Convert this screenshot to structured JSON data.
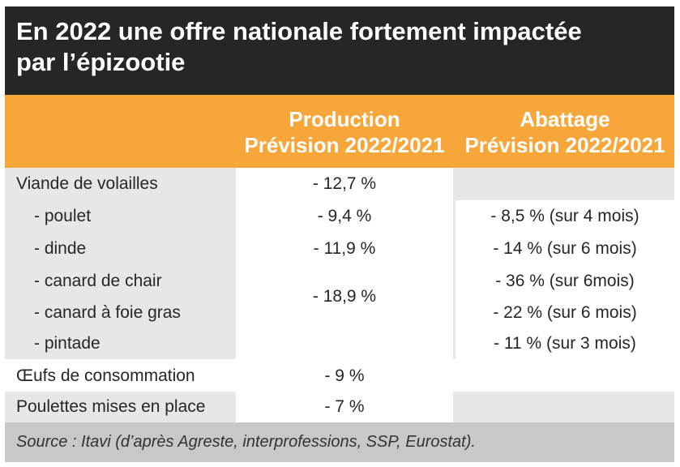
{
  "title": {
    "line1": "En 2022 une offre nationale fortement impactée",
    "line2": "par l’épizootie"
  },
  "header": {
    "production": {
      "line1": "Production",
      "line2": "Prévision 2022/2021"
    },
    "abattage": {
      "line1": "Abattage",
      "line2": "Prévision 2022/2021"
    }
  },
  "rows": [
    {
      "label": "Viande de volailles",
      "production": "- 12,7 %",
      "abattage": ""
    },
    {
      "label": "- poulet",
      "production": "- 9,4 %",
      "abattage": "- 8,5 % (sur 4 mois)"
    },
    {
      "label": "- dinde",
      "production": "- 11,9 %",
      "abattage": "- 14 % (sur 6 mois)"
    },
    {
      "label": "- canard de chair",
      "production": "",
      "abattage": "- 36 % (sur 6mois)"
    },
    {
      "label": "- canard à foie gras",
      "production": "",
      "abattage": "- 22 % (sur 6 mois)"
    },
    {
      "label": "- pintade",
      "production": "",
      "abattage": "- 11 % (sur 3 mois)"
    },
    {
      "label": "Œufs de consommation",
      "production": "- 9 %",
      "abattage": ""
    },
    {
      "label": "Poulettes mises en place",
      "production": "- 7 %",
      "abattage": ""
    }
  ],
  "merged": {
    "canard_production": "- 18,9 %"
  },
  "source": "Source : Itavi (d’après Agreste, interprofessions, SSP, Eurostat).",
  "colors": {
    "title_bg": "#262626",
    "header_bg": "#f7a73a",
    "row_grey": "#e7e7e7",
    "source_bg": "#c8c8c8"
  }
}
